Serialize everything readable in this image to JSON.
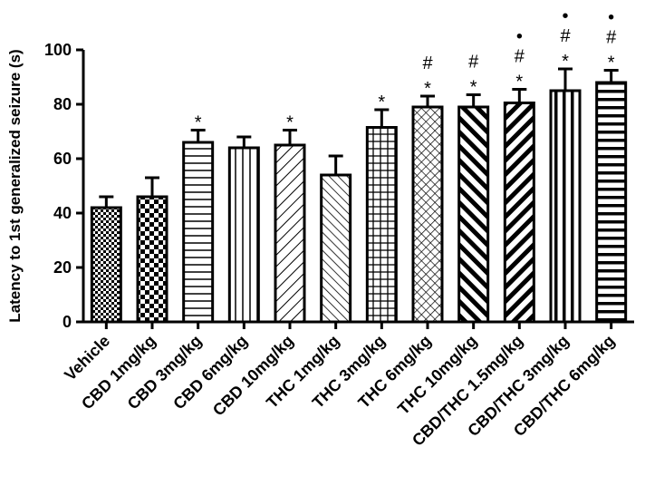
{
  "chart_data": {
    "type": "bar",
    "title": "",
    "xlabel": "",
    "ylabel": "Latency to 1st generalized seizure (s)",
    "ylim": [
      0,
      100
    ],
    "yticks": [
      0,
      20,
      40,
      60,
      80,
      100
    ],
    "grid": false,
    "categories": [
      "Vehicle",
      "CBD 1mg/kg",
      "CBD 3mg/kg",
      "CBD 6mg/kg",
      "CBD 10mg/kg",
      "THC 1mg/kg",
      "THC 3mg/kg",
      "THC 6mg/kg",
      "THC 10mg/kg",
      "CBD/THC 1.5mg/kg",
      "CBD/THC 3mg/kg",
      "CBD/THC 6mg/kg"
    ],
    "values": [
      42,
      46,
      66,
      64,
      65,
      54,
      71.5,
      79,
      79,
      80.5,
      85,
      88
    ],
    "errors": [
      4,
      7,
      4.5,
      4,
      5.5,
      7,
      6.5,
      4,
      4.5,
      5,
      8,
      4.5
    ],
    "patterns": [
      "fine-check",
      "check",
      "horizontal",
      "vertical",
      "diag-up",
      "diag-down",
      "grid",
      "crosshatch",
      "diag-down-bold",
      "diag-up-bold",
      "vertical-bold",
      "horizontal-bold"
    ],
    "annotations": [
      [],
      [],
      [
        "*"
      ],
      [],
      [
        "*"
      ],
      [],
      [
        "*"
      ],
      [
        "*",
        "#"
      ],
      [
        "*",
        "#"
      ],
      [
        "*",
        "#",
        "•"
      ],
      [
        "*",
        "#",
        "•"
      ],
      [
        "*",
        "#",
        "•"
      ]
    ]
  }
}
